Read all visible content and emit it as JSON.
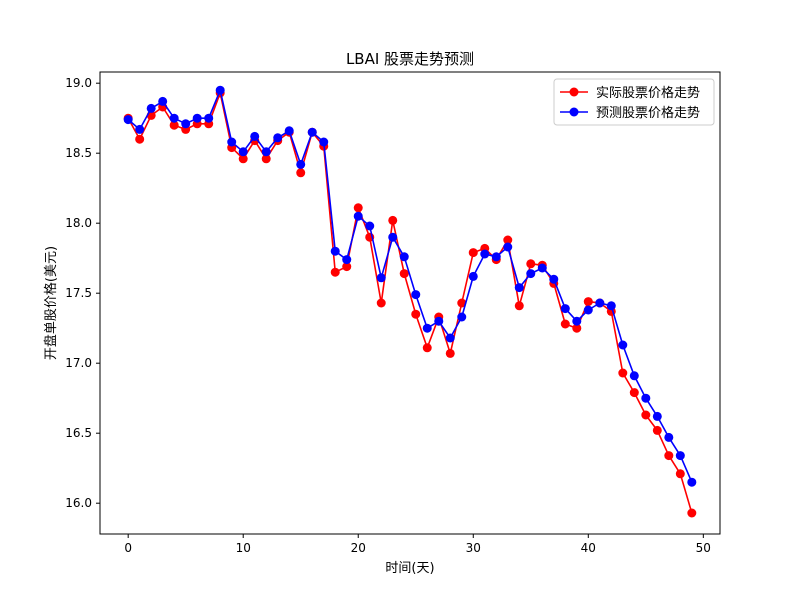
{
  "chart_data": {
    "type": "line",
    "title": "LBAI 股票走势预测",
    "xlabel": "时间(天)",
    "ylabel": "开盘单股价格(美元)",
    "xlim": [
      -2.45,
      51.45
    ],
    "ylim": [
      15.78,
      19.08
    ],
    "xticks": [
      0,
      10,
      20,
      30,
      40,
      50
    ],
    "yticks": [
      16.0,
      16.5,
      17.0,
      17.5,
      18.0,
      18.5,
      19.0
    ],
    "ytick_labels": [
      "16.0",
      "16.5",
      "17.0",
      "17.5",
      "18.0",
      "18.5",
      "19.0"
    ],
    "grid": false,
    "legend_position": "top-right",
    "x": [
      0,
      1,
      2,
      3,
      4,
      5,
      6,
      7,
      8,
      9,
      10,
      11,
      12,
      13,
      14,
      15,
      16,
      17,
      18,
      19,
      20,
      21,
      22,
      23,
      24,
      25,
      26,
      27,
      28,
      29,
      30,
      31,
      32,
      33,
      34,
      35,
      36,
      37,
      38,
      39,
      40,
      41,
      42,
      43,
      44,
      45,
      46,
      47,
      48,
      49
    ],
    "series": [
      {
        "name": "实际股票价格走势",
        "color": "#ff0000",
        "values": [
          18.75,
          18.6,
          18.77,
          18.83,
          18.7,
          18.67,
          18.71,
          18.71,
          18.93,
          18.54,
          18.46,
          18.59,
          18.46,
          18.59,
          18.65,
          18.36,
          18.65,
          18.55,
          17.65,
          17.69,
          18.11,
          17.9,
          17.43,
          18.02,
          17.64,
          17.35,
          17.11,
          17.33,
          17.07,
          17.43,
          17.79,
          17.82,
          17.74,
          17.88,
          17.41,
          17.71,
          17.7,
          17.57,
          17.28,
          17.25,
          17.44,
          17.43,
          17.37,
          16.93,
          16.79,
          16.63,
          16.52,
          16.34,
          16.21,
          15.93
        ]
      },
      {
        "name": "预测股票价格走势",
        "color": "#0000ff",
        "values": [
          18.74,
          18.67,
          18.82,
          18.87,
          18.75,
          18.71,
          18.75,
          18.75,
          18.95,
          18.58,
          18.51,
          18.62,
          18.51,
          18.61,
          18.66,
          18.42,
          18.65,
          18.58,
          17.8,
          17.74,
          18.05,
          17.98,
          17.61,
          17.9,
          17.76,
          17.49,
          17.25,
          17.3,
          17.18,
          17.33,
          17.62,
          17.78,
          17.76,
          17.83,
          17.54,
          17.64,
          17.68,
          17.6,
          17.39,
          17.3,
          17.38,
          17.43,
          17.41,
          17.13,
          16.91,
          16.75,
          16.62,
          16.47,
          16.34,
          16.15
        ]
      }
    ]
  }
}
